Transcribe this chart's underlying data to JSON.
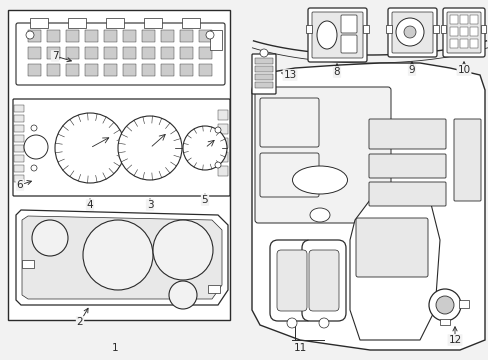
{
  "bg": "#f2f2f2",
  "lc": "#2a2a2a",
  "white": "#ffffff",
  "lgray": "#e8e8e8",
  "mgray": "#cccccc"
}
